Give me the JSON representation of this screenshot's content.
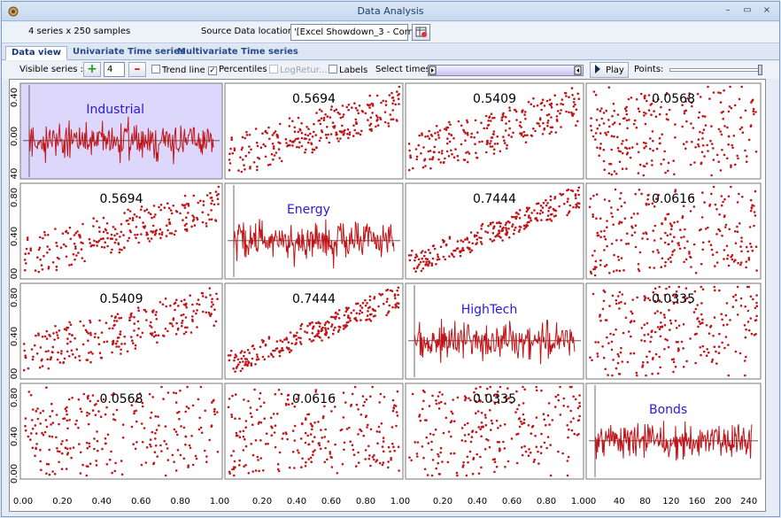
{
  "window": {
    "title": "Data Analysis",
    "minimize": "–",
    "maximize": "▭",
    "close": "×"
  },
  "info": {
    "series_count_text": "4 series  x  250 samples",
    "source_label": "Source Data location :",
    "source_value": "'[Excel Showdown_3 - Corre"
  },
  "tabs": [
    "Data view",
    "Univariate Time series",
    "Multivariate Time series"
  ],
  "toolbar": {
    "visible_series_label": "Visible series :",
    "visible_series_value": "4",
    "add_button": "+",
    "remove_button": "–",
    "trend_line": "Trend line",
    "percentiles": "Percentiles",
    "log_returns": "LogRetur...",
    "labels": "Labels",
    "select_times": "Select times:",
    "play": "Play",
    "points": "Points:"
  },
  "colors": {
    "series": "#c0161a",
    "label": "#2a18d8",
    "highlight": "#ddd8fb"
  },
  "chart_data": {
    "type": "scatter",
    "series_names": [
      "Industrial",
      "Energy",
      "HighTech",
      "Bonds"
    ],
    "correlations": [
      [
        null,
        "0.5694",
        "0.5409",
        "0.0568"
      ],
      [
        "0.5694",
        null,
        "0.7444",
        "0.0616"
      ],
      [
        "0.5409",
        "0.7444",
        null,
        "0.0335"
      ],
      [
        "0.0568",
        "0.0616",
        "0.0335",
        null
      ]
    ],
    "samples": 250,
    "x_ticks_scatter": [
      "0.00",
      "0.20",
      "0.40",
      "0.60",
      "0.80",
      "1.00"
    ],
    "x_ticks_time": [
      "0",
      "40",
      "80",
      "120",
      "160",
      "200",
      "240"
    ],
    "y_ticks": {
      "row0": [
        "0.40",
        "0.00",
        "40"
      ],
      "row1": [
        "0.80",
        "0.40",
        "00"
      ],
      "row2": [
        "0.80",
        "0.40",
        "00"
      ],
      "row3": [
        "0.80",
        "0.40",
        "0.00"
      ]
    }
  }
}
